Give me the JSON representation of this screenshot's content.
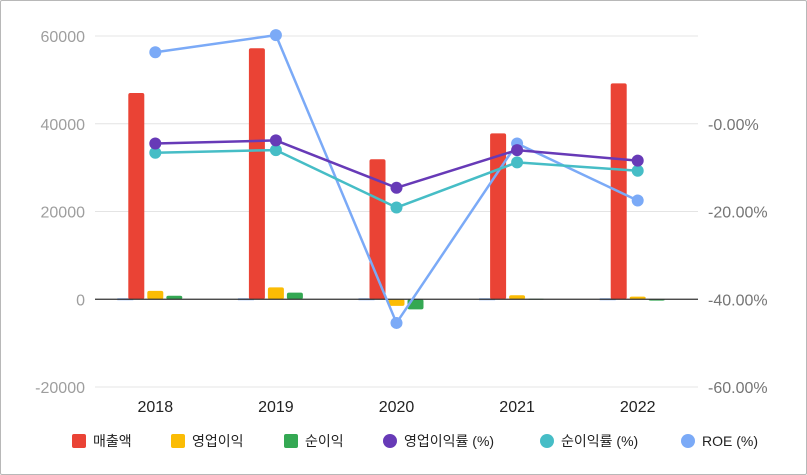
{
  "chart_data": {
    "type": "bar",
    "categories": [
      "2018",
      "2019",
      "2020",
      "2021",
      "2022"
    ],
    "left_axis": {
      "ylim": [
        -20000,
        60000
      ],
      "ticks": [
        "-20000",
        "0",
        "20000",
        "40000",
        "60000"
      ]
    },
    "right_axis": {
      "ylim": [
        -60,
        20
      ],
      "ticks": [
        "-60.00%",
        "-40.00%",
        "-20.00%",
        "-0.00%"
      ]
    },
    "series": [
      {
        "name": "매출액",
        "type": "bar",
        "axis": "left",
        "color": "#EA4335",
        "values": [
          47000,
          57200,
          31900,
          37800,
          49200
        ]
      },
      {
        "name": "영업이익",
        "type": "bar",
        "axis": "left",
        "color": "#FBBC04",
        "values": [
          1900,
          2700,
          -1500,
          900,
          600
        ]
      },
      {
        "name": "순이익",
        "type": "bar",
        "axis": "left",
        "color": "#34A853",
        "values": [
          800,
          1500,
          -2300,
          100,
          -300
        ]
      },
      {
        "name": "영업이익률 (%)",
        "type": "line",
        "axis": "right",
        "color": "#673AB7",
        "values": [
          -4.5,
          -3.8,
          -14.6,
          -6.0,
          -8.4
        ]
      },
      {
        "name": "순이익률 (%)",
        "type": "line",
        "axis": "right",
        "color": "#46BDC6",
        "values": [
          -6.6,
          -6.0,
          -19.1,
          -8.8,
          -10.7
        ]
      },
      {
        "name": "ROE (%)",
        "type": "line",
        "axis": "right",
        "color": "#7BAAF7",
        "values": [
          16.3,
          20.2,
          -45.4,
          -4.5,
          -17.5
        ]
      }
    ],
    "grid": true,
    "legend": "bottom"
  }
}
